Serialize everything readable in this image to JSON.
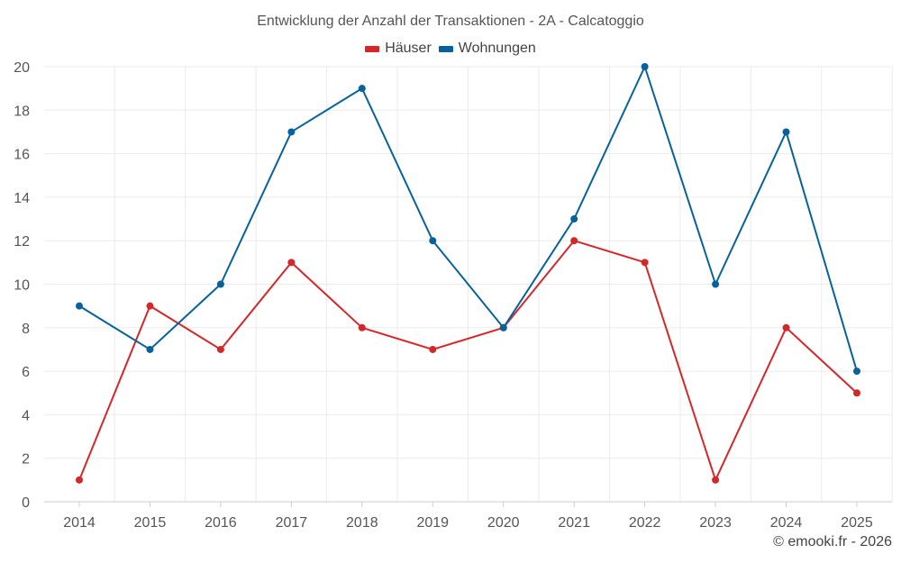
{
  "chart_data": {
    "type": "line",
    "title": "Entwicklung der Anzahl der Transaktionen - 2A - Calcatoggio",
    "categories": [
      "2014",
      "2015",
      "2016",
      "2017",
      "2018",
      "2019",
      "2020",
      "2021",
      "2022",
      "2023",
      "2024",
      "2025"
    ],
    "series": [
      {
        "name": "Häuser",
        "color": "#d62728",
        "values": [
          1,
          9,
          7,
          11,
          8,
          7,
          8,
          12,
          11,
          1,
          8,
          5
        ]
      },
      {
        "name": "Wohnungen",
        "color": "#07629c",
        "values": [
          9,
          7,
          10,
          17,
          19,
          12,
          8,
          13,
          20,
          10,
          17,
          6
        ]
      }
    ],
    "y_ticks": [
      0,
      2,
      4,
      6,
      8,
      10,
      12,
      14,
      16,
      18,
      20
    ],
    "ylim": [
      0,
      20
    ],
    "xlabel": "",
    "ylabel": "",
    "grid": true,
    "legend_position": "top-center"
  },
  "credit": "© emooki.fr - 2026"
}
